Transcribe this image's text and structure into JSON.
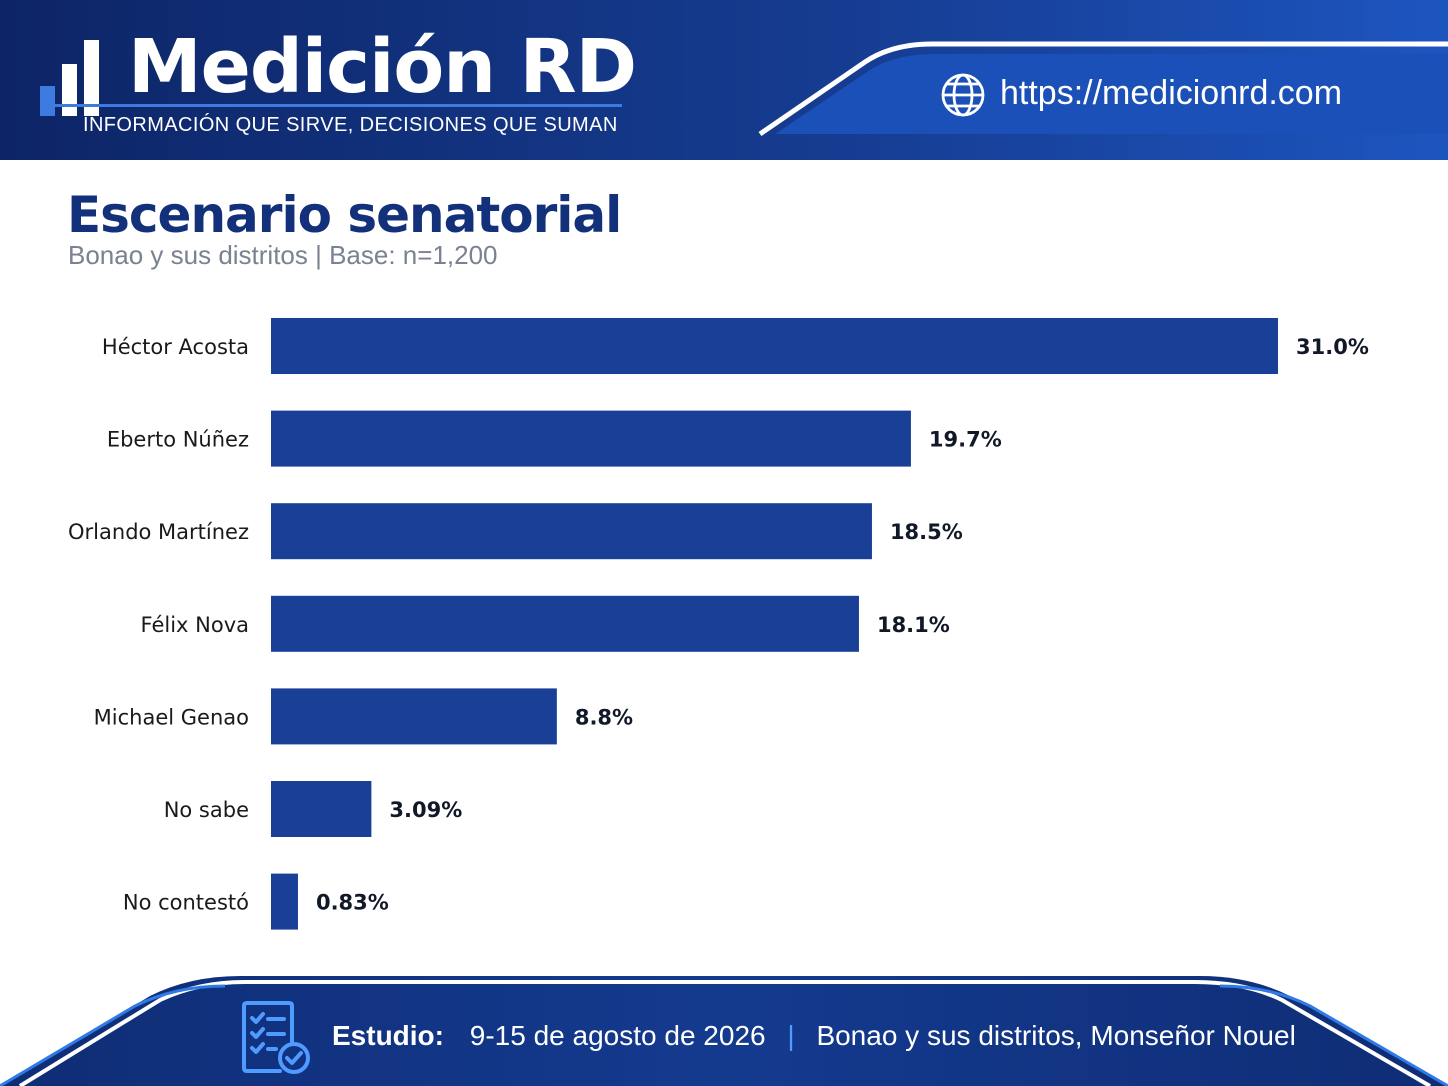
{
  "brand": {
    "name": "Medición RD",
    "tagline": "INFORMACIÓN QUE SIRVE, DECISIONES QUE SUMAN",
    "url": "https://medicionrd.com"
  },
  "colors": {
    "navy": "#0f2a6b",
    "blue": "#1a4fb0",
    "bar": "#1a3f96",
    "title": "#13307a",
    "accent": "#4f9bff"
  },
  "icons": {
    "url": "globe-icon",
    "footer": "checklist-icon"
  },
  "footer": {
    "label": "Estudio:",
    "dates": "9-15 de agosto de 2026",
    "separator": "|",
    "location": "Bonao y sus distritos, Monseñor Nouel"
  },
  "chart_data": {
    "type": "bar",
    "orientation": "horizontal",
    "title": "Escenario senatorial",
    "subtitle": "Bonao y sus distritos | Base: n=1,200",
    "xlabel": "",
    "ylabel": "",
    "xlim": [
      0,
      31
    ],
    "grid": false,
    "categories": [
      "Héctor Acosta",
      "Eberto Núñez",
      "Orlando Martínez",
      "Félix Nova",
      "Michael Genao",
      "No sabe",
      "No contestó"
    ],
    "values": [
      31.0,
      19.7,
      18.5,
      18.1,
      8.8,
      3.09,
      0.83
    ],
    "data_labels": [
      "31.0%",
      "19.7%",
      "18.5%",
      "18.1%",
      "8.8%",
      "3.09%",
      "0.83%"
    ]
  }
}
